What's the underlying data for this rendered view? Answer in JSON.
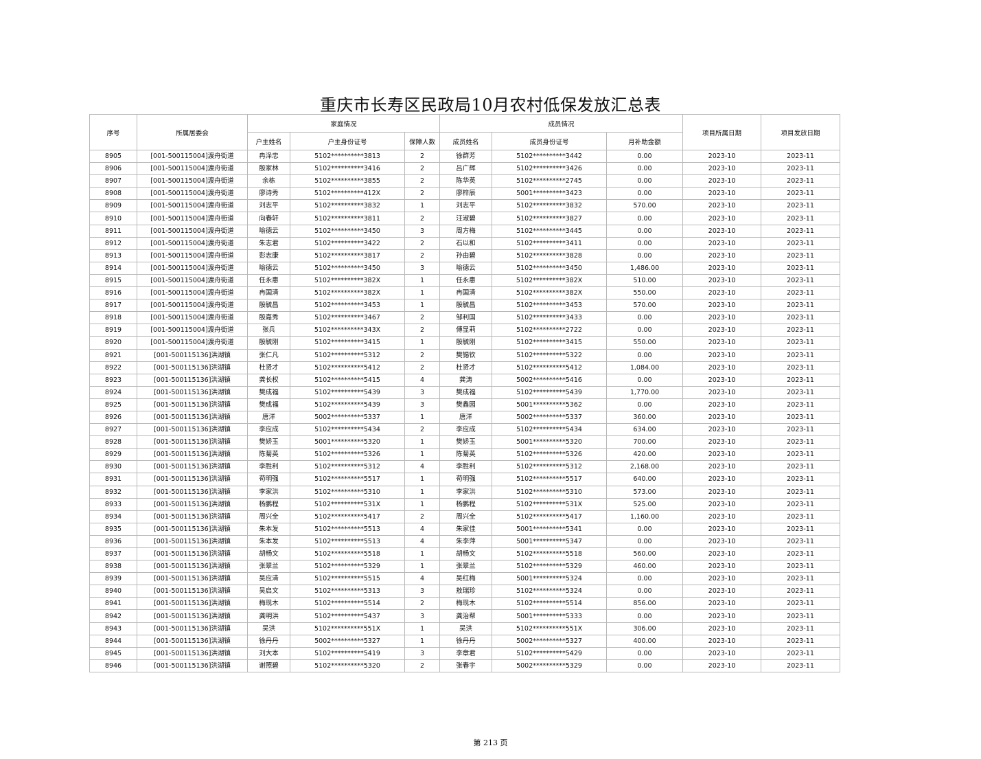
{
  "title": "重庆市长寿区民政局10月农村低保发放汇总表",
  "headers": {
    "seq": "序号",
    "committee": "所属居委会",
    "family_group": "家庭情况",
    "member_group": "成员情况",
    "head_name": "户主姓名",
    "head_id": "户主身份证号",
    "count": "保障人数",
    "member_name": "成员姓名",
    "member_id": "成员身份证号",
    "amount": "月补助金额",
    "belong_date": "项目所属日期",
    "issue_date": "项目发放日期"
  },
  "rows": [
    [
      "8905",
      "[001-500115004]渡舟街道",
      "冉泽忠",
      "5102**********3813",
      "2",
      "徐群芳",
      "5102**********3442",
      "0.00",
      "2023-10",
      "2023-11"
    ],
    [
      "8906",
      "[001-500115004]渡舟街道",
      "殷家林",
      "5102**********3416",
      "2",
      "吕广辉",
      "5102**********3426",
      "0.00",
      "2023-10",
      "2023-11"
    ],
    [
      "8907",
      "[001-500115004]渡舟街道",
      "余栋",
      "5102**********3855",
      "2",
      "陈华英",
      "5102**********2745",
      "0.00",
      "2023-10",
      "2023-11"
    ],
    [
      "8908",
      "[001-500115004]渡舟街道",
      "廖诗秀",
      "5102**********412X",
      "2",
      "廖梓辰",
      "5001**********3423",
      "0.00",
      "2023-10",
      "2023-11"
    ],
    [
      "8909",
      "[001-500115004]渡舟街道",
      "刘志平",
      "5102**********3832",
      "1",
      "刘志平",
      "5102**********3832",
      "570.00",
      "2023-10",
      "2023-11"
    ],
    [
      "8910",
      "[001-500115004]渡舟街道",
      "向春轩",
      "5102**********3811",
      "2",
      "汪淑碧",
      "5102**********3827",
      "0.00",
      "2023-10",
      "2023-11"
    ],
    [
      "8911",
      "[001-500115004]渡舟街道",
      "喻德云",
      "5102**********3450",
      "3",
      "周方梅",
      "5102**********3445",
      "0.00",
      "2023-10",
      "2023-11"
    ],
    [
      "8912",
      "[001-500115004]渡舟街道",
      "朱志君",
      "5102**********3422",
      "2",
      "石以和",
      "5102**********3411",
      "0.00",
      "2023-10",
      "2023-11"
    ],
    [
      "8913",
      "[001-500115004]渡舟街道",
      "彭志康",
      "5102**********3817",
      "2",
      "孙由碧",
      "5102**********3828",
      "0.00",
      "2023-10",
      "2023-11"
    ],
    [
      "8914",
      "[001-500115004]渡舟街道",
      "喻德云",
      "5102**********3450",
      "3",
      "喻德云",
      "5102**********3450",
      "1,486.00",
      "2023-10",
      "2023-11"
    ],
    [
      "8915",
      "[001-500115004]渡舟街道",
      "任永惠",
      "5102**********382X",
      "1",
      "任永惠",
      "5102**********382X",
      "510.00",
      "2023-10",
      "2023-11"
    ],
    [
      "8916",
      "[001-500115004]渡舟街道",
      "冉国清",
      "5102**********382X",
      "1",
      "冉国清",
      "5102**********382X",
      "550.00",
      "2023-10",
      "2023-11"
    ],
    [
      "8917",
      "[001-500115004]渡舟街道",
      "殷毓昌",
      "5102**********3453",
      "1",
      "殷毓昌",
      "5102**********3453",
      "570.00",
      "2023-10",
      "2023-11"
    ],
    [
      "8918",
      "[001-500115004]渡舟街道",
      "殷嘉秀",
      "5102**********3467",
      "2",
      "邹利国",
      "5102**********3433",
      "0.00",
      "2023-10",
      "2023-11"
    ],
    [
      "8919",
      "[001-500115004]渡舟街道",
      "张兵",
      "5102**********343X",
      "2",
      "傅显莉",
      "5102**********2722",
      "0.00",
      "2023-10",
      "2023-11"
    ],
    [
      "8920",
      "[001-500115004]渡舟街道",
      "殷毓刚",
      "5102**********3415",
      "1",
      "殷毓刚",
      "5102**********3415",
      "550.00",
      "2023-10",
      "2023-11"
    ],
    [
      "8921",
      "[001-500115136]洪湖镇",
      "张仁凡",
      "5102**********5312",
      "2",
      "樊锡钦",
      "5102**********5322",
      "0.00",
      "2023-10",
      "2023-11"
    ],
    [
      "8922",
      "[001-500115136]洪湖镇",
      "杜贤才",
      "5102**********5412",
      "2",
      "杜贤才",
      "5102**********5412",
      "1,084.00",
      "2023-10",
      "2023-11"
    ],
    [
      "8923",
      "[001-500115136]洪湖镇",
      "龚长权",
      "5102**********5415",
      "4",
      "龚涛",
      "5002**********5416",
      "0.00",
      "2023-10",
      "2023-11"
    ],
    [
      "8924",
      "[001-500115136]洪湖镇",
      "樊成福",
      "5102**********5439",
      "3",
      "樊成福",
      "5102**********5439",
      "1,770.00",
      "2023-10",
      "2023-11"
    ],
    [
      "8925",
      "[001-500115136]洪湖镇",
      "樊成福",
      "5102**********5439",
      "3",
      "樊鑫园",
      "5001**********5362",
      "0.00",
      "2023-10",
      "2023-11"
    ],
    [
      "8926",
      "[001-500115136]洪湖镇",
      "唐洋",
      "5002**********5337",
      "1",
      "唐洋",
      "5002**********5337",
      "360.00",
      "2023-10",
      "2023-11"
    ],
    [
      "8927",
      "[001-500115136]洪湖镇",
      "李应成",
      "5102**********5434",
      "2",
      "李应成",
      "5102**********5434",
      "634.00",
      "2023-10",
      "2023-11"
    ],
    [
      "8928",
      "[001-500115136]洪湖镇",
      "樊娇玉",
      "5001**********5320",
      "1",
      "樊娇玉",
      "5001**********5320",
      "700.00",
      "2023-10",
      "2023-11"
    ],
    [
      "8929",
      "[001-500115136]洪湖镇",
      "陈菊英",
      "5102**********5326",
      "1",
      "陈菊英",
      "5102**********5326",
      "420.00",
      "2023-10",
      "2023-11"
    ],
    [
      "8930",
      "[001-500115136]洪湖镇",
      "李胜利",
      "5102**********5312",
      "4",
      "李胜利",
      "5102**********5312",
      "2,168.00",
      "2023-10",
      "2023-11"
    ],
    [
      "8931",
      "[001-500115136]洪湖镇",
      "苟明强",
      "5102**********5517",
      "1",
      "苟明强",
      "5102**********5517",
      "640.00",
      "2023-10",
      "2023-11"
    ],
    [
      "8932",
      "[001-500115136]洪湖镇",
      "李家洪",
      "5102**********5310",
      "1",
      "李家洪",
      "5102**********5310",
      "573.00",
      "2023-10",
      "2023-11"
    ],
    [
      "8933",
      "[001-500115136]洪湖镇",
      "杨鹏程",
      "5102**********531X",
      "1",
      "杨鹏程",
      "5102**********531X",
      "525.00",
      "2023-10",
      "2023-11"
    ],
    [
      "8934",
      "[001-500115136]洪湖镇",
      "周兴全",
      "5102**********5417",
      "2",
      "周兴全",
      "5102**********5417",
      "1,160.00",
      "2023-10",
      "2023-11"
    ],
    [
      "8935",
      "[001-500115136]洪湖镇",
      "朱本发",
      "5102**********5513",
      "4",
      "朱家佳",
      "5001**********5341",
      "0.00",
      "2023-10",
      "2023-11"
    ],
    [
      "8936",
      "[001-500115136]洪湖镇",
      "朱本发",
      "5102**********5513",
      "4",
      "朱李萍",
      "5001**********5347",
      "0.00",
      "2023-10",
      "2023-11"
    ],
    [
      "8937",
      "[001-500115136]洪湖镇",
      "胡畅文",
      "5102**********5518",
      "1",
      "胡畅文",
      "5102**********5518",
      "560.00",
      "2023-10",
      "2023-11"
    ],
    [
      "8938",
      "[001-500115136]洪湖镇",
      "张翠兰",
      "5102**********5329",
      "1",
      "张翠兰",
      "5102**********5329",
      "460.00",
      "2023-10",
      "2023-11"
    ],
    [
      "8939",
      "[001-500115136]洪湖镇",
      "吴应清",
      "5102**********5515",
      "4",
      "吴红梅",
      "5001**********5324",
      "0.00",
      "2023-10",
      "2023-11"
    ],
    [
      "8940",
      "[001-500115136]洪湖镇",
      "吴启文",
      "5102**********5313",
      "3",
      "敖瑞珍",
      "5102**********5324",
      "0.00",
      "2023-10",
      "2023-11"
    ],
    [
      "8941",
      "[001-500115136]洪湖镇",
      "梅现木",
      "5102**********5514",
      "2",
      "梅现木",
      "5102**********5514",
      "856.00",
      "2023-10",
      "2023-11"
    ],
    [
      "8942",
      "[001-500115136]洪湖镇",
      "龚明洪",
      "5102**********5437",
      "3",
      "龚治帮",
      "5001**********5333",
      "0.00",
      "2023-10",
      "2023-11"
    ],
    [
      "8943",
      "[001-500115136]洪湖镇",
      "吴洪",
      "5102**********551X",
      "1",
      "吴洪",
      "5102**********551X",
      "306.00",
      "2023-10",
      "2023-11"
    ],
    [
      "8944",
      "[001-500115136]洪湖镇",
      "徐丹丹",
      "5002**********5327",
      "1",
      "徐丹丹",
      "5002**********5327",
      "400.00",
      "2023-10",
      "2023-11"
    ],
    [
      "8945",
      "[001-500115136]洪湖镇",
      "刘大本",
      "5102**********5419",
      "3",
      "李章君",
      "5102**********5429",
      "0.00",
      "2023-10",
      "2023-11"
    ],
    [
      "8946",
      "[001-500115136]洪湖镇",
      "谢照碧",
      "5102**********5320",
      "2",
      "张春宇",
      "5002**********5329",
      "0.00",
      "2023-10",
      "2023-11"
    ]
  ],
  "footer": "第 213 页"
}
